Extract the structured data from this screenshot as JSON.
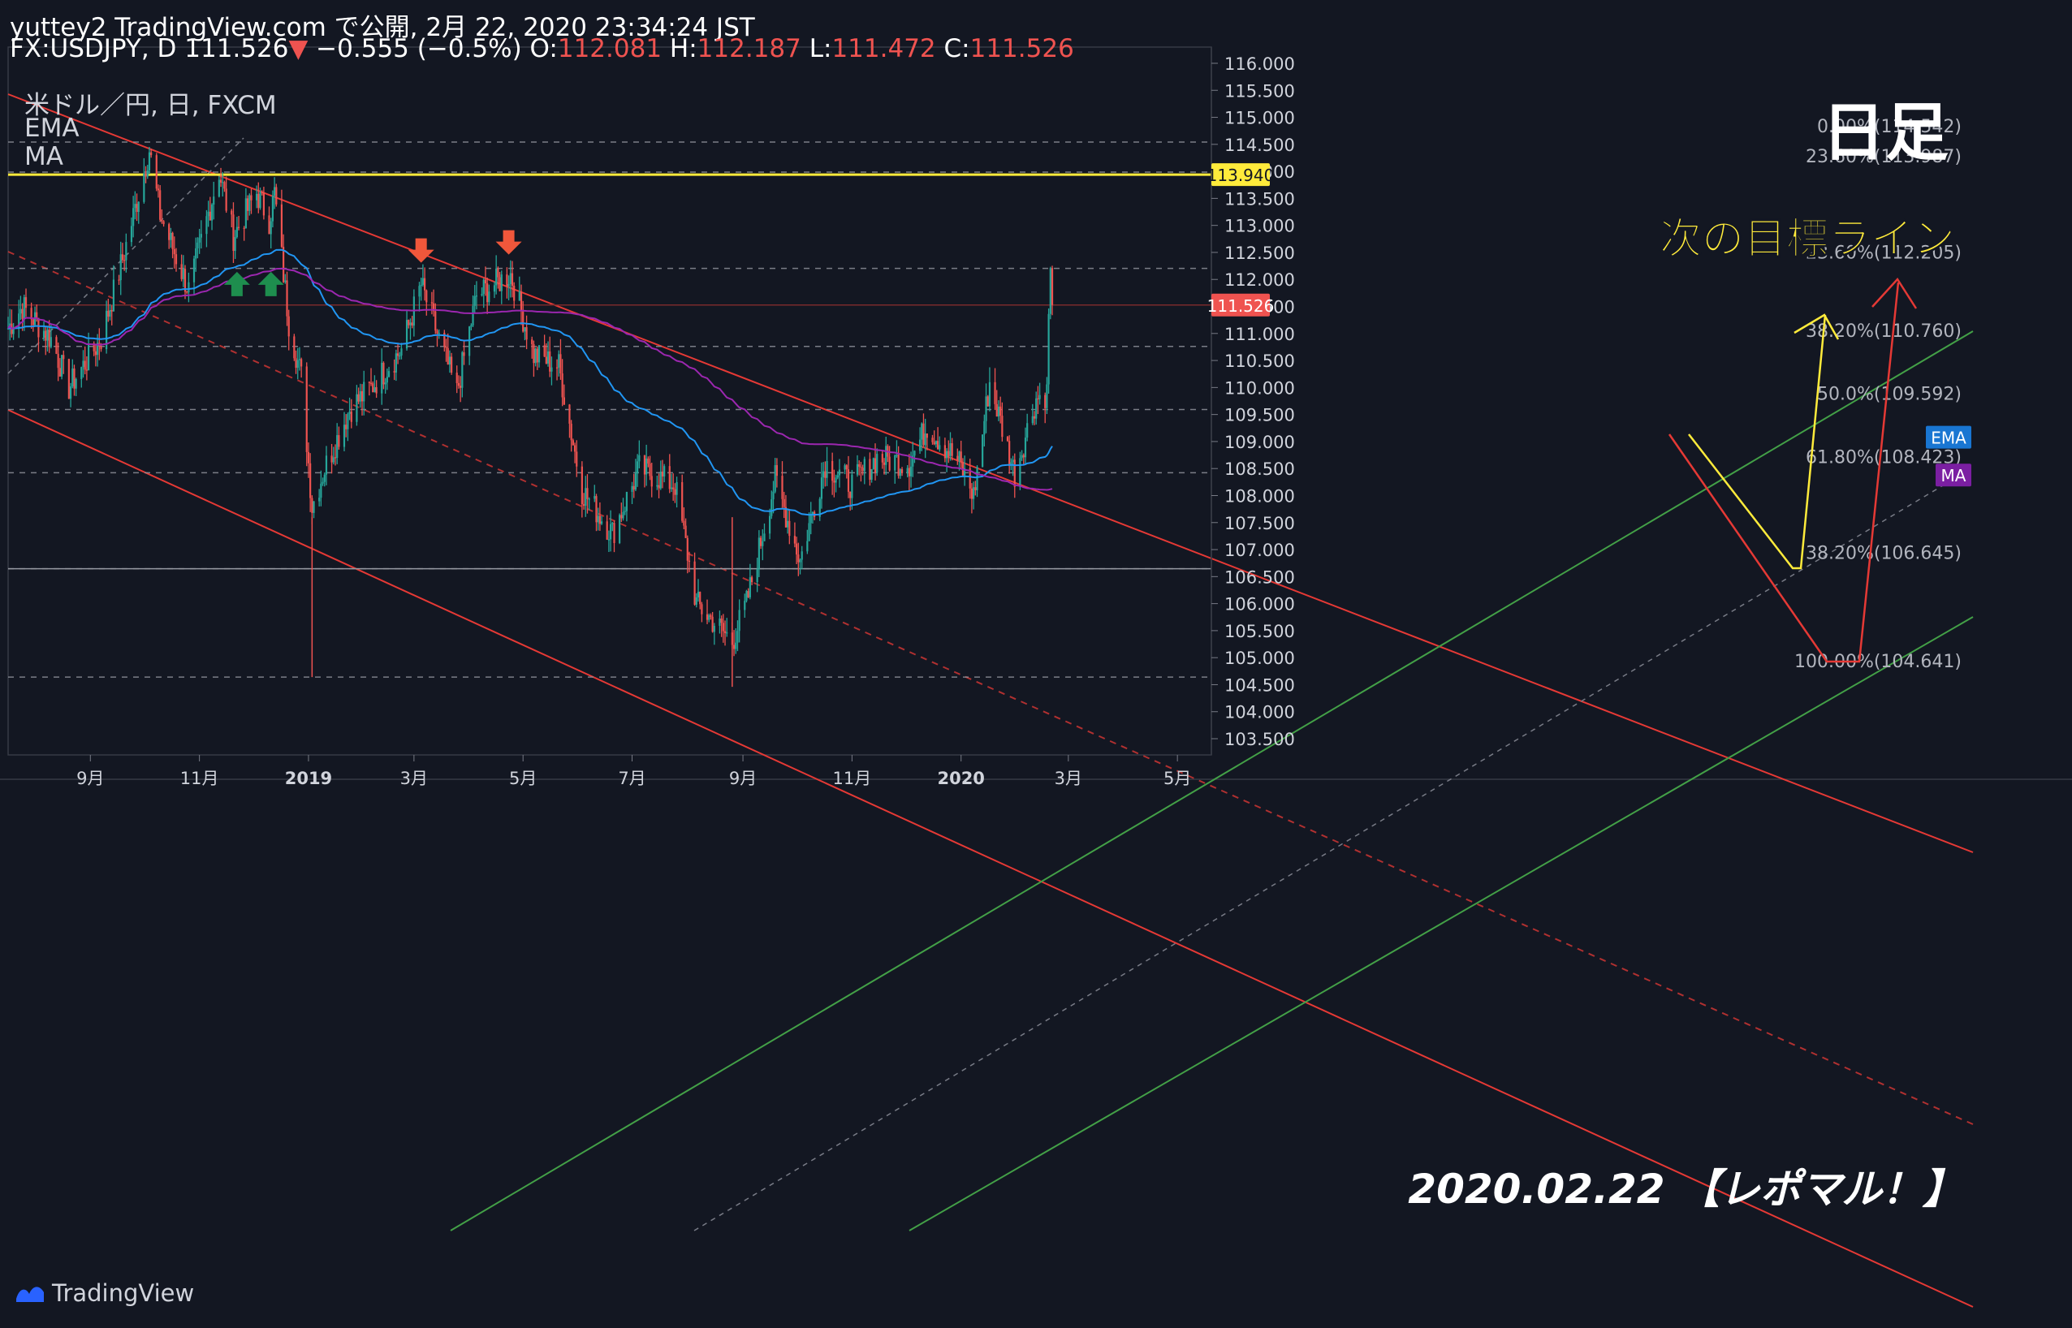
{
  "header": {
    "line1": "yuttey2 TradingView.com で公開, 2月 22, 2020 23:34:24 JST",
    "symbol_prefix": "FX:USDJPY, D 111.526",
    "down_arrow": "▼",
    "change": "−0.555 (−0.5%)",
    "o_label": "O:",
    "o_value": "112.081",
    "h_label": "H:",
    "h_value": "112.187",
    "l_label": "L:",
    "l_value": "111.472",
    "c_label": "C:",
    "c_value": "111.526"
  },
  "legend": {
    "instrument": "米ドル／円, 日, FXCM",
    "ema": "EMA",
    "ma": "MA"
  },
  "annotations": {
    "timeframe": "日足",
    "target": "次の目標ライン",
    "date_note": "2020.02.22 【レポマル！】"
  },
  "footer": {
    "brand": "TradingView"
  },
  "colors": {
    "background": "#131722",
    "up": "#26a69a",
    "down": "#ef5350",
    "ema": "#2196f3",
    "ma": "#9c27b0",
    "channel": "#e53935",
    "green_channel": "#43a047",
    "target": "#ffeb3b"
  },
  "chart_data": {
    "type": "candlestick",
    "symbol": "FX:USDJPY",
    "timeframe": "D",
    "x_range": [
      "2018-07-17",
      "2020-05-20"
    ],
    "y_range": [
      103.2,
      116.3
    ],
    "y_ticks": [
      "116.000",
      "115.500",
      "115.000",
      "114.500",
      "114.000",
      "113.500",
      "113.000",
      "112.500",
      "112.000",
      "111.500",
      "111.000",
      "110.500",
      "110.000",
      "109.500",
      "109.000",
      "108.500",
      "108.000",
      "107.500",
      "107.000",
      "106.500",
      "106.000",
      "105.500",
      "105.000",
      "104.500",
      "104.000",
      "103.500"
    ],
    "x_ticks": [
      {
        "label": "9月",
        "date": "2018-09-01"
      },
      {
        "label": "11月",
        "date": "2018-11-01"
      },
      {
        "label": "2019",
        "date": "2019-01-01"
      },
      {
        "label": "3月",
        "date": "2019-03-01"
      },
      {
        "label": "5月",
        "date": "2019-05-01"
      },
      {
        "label": "7月",
        "date": "2019-07-01"
      },
      {
        "label": "9月",
        "date": "2019-09-01"
      },
      {
        "label": "11月",
        "date": "2019-11-01"
      },
      {
        "label": "2020",
        "date": "2020-01-01"
      },
      {
        "label": "3月",
        "date": "2020-03-01"
      },
      {
        "label": "5月",
        "date": "2020-05-01"
      }
    ],
    "price_badges": [
      {
        "label": "113.940",
        "value": 113.94,
        "type": "target"
      },
      {
        "label": "111.526",
        "value": 111.526,
        "type": "last"
      },
      {
        "label": "EMA",
        "value": 109.08,
        "type": "ema"
      },
      {
        "label": "MA",
        "value": 108.38,
        "type": "ma"
      }
    ],
    "fib_levels": [
      {
        "label": "0.00%(114.542)",
        "value": 114.542
      },
      {
        "label": "23.60%(113.987)",
        "value": 113.987
      },
      {
        "label": "23.60%(112.205)",
        "value": 112.205
      },
      {
        "label": "38.20%(110.760)",
        "value": 110.76
      },
      {
        "label": "50.0%(109.592)",
        "value": 109.592
      },
      {
        "label": "61.80%(108.423)",
        "value": 108.423
      },
      {
        "label": "38.20%(106.645)",
        "value": 106.645
      },
      {
        "label": "100.00%(104.641)",
        "value": 104.641
      }
    ],
    "horizontal_lines": [
      {
        "value": 113.94,
        "style": "target"
      },
      {
        "value": 111.526,
        "style": "last"
      },
      {
        "value": 106.645,
        "style": "plain"
      }
    ],
    "anchors": [
      {
        "date": "2018-07-17",
        "close": 111.1
      },
      {
        "date": "2018-07-25",
        "close": 111.5
      },
      {
        "date": "2018-08-10",
        "close": 110.9
      },
      {
        "date": "2018-08-20",
        "close": 110.0
      },
      {
        "date": "2018-09-07",
        "close": 110.9
      },
      {
        "date": "2018-09-20",
        "close": 112.5
      },
      {
        "date": "2018-10-04",
        "close": 114.4
      },
      {
        "date": "2018-10-10",
        "close": 113.2
      },
      {
        "date": "2018-10-26",
        "close": 111.8
      },
      {
        "date": "2018-11-12",
        "close": 114.0
      },
      {
        "date": "2018-11-20",
        "close": 112.8
      },
      {
        "date": "2018-12-03",
        "close": 113.6
      },
      {
        "date": "2018-12-10",
        "close": 113.1
      },
      {
        "date": "2018-12-13",
        "close": 113.6
      },
      {
        "date": "2018-12-21",
        "close": 111.2
      },
      {
        "date": "2018-12-28",
        "close": 110.2
      },
      {
        "date": "2019-01-03",
        "close": 107.8
      },
      {
        "date": "2019-01-10",
        "close": 108.5
      },
      {
        "date": "2019-01-24",
        "close": 109.6
      },
      {
        "date": "2019-02-05",
        "close": 110.0
      },
      {
        "date": "2019-02-22",
        "close": 110.7
      },
      {
        "date": "2019-03-05",
        "close": 111.9
      },
      {
        "date": "2019-03-25",
        "close": 109.9
      },
      {
        "date": "2019-04-05",
        "close": 111.7
      },
      {
        "date": "2019-04-24",
        "close": 112.1
      },
      {
        "date": "2019-05-07",
        "close": 110.6
      },
      {
        "date": "2019-05-21",
        "close": 110.4
      },
      {
        "date": "2019-06-03",
        "close": 108.1
      },
      {
        "date": "2019-06-20",
        "close": 107.3
      },
      {
        "date": "2019-07-05",
        "close": 108.5
      },
      {
        "date": "2019-07-25",
        "close": 108.2
      },
      {
        "date": "2019-08-06",
        "close": 106.0
      },
      {
        "date": "2019-08-26",
        "close": 105.3
      },
      {
        "date": "2019-09-03",
        "close": 106.0
      },
      {
        "date": "2019-09-19",
        "close": 108.3
      },
      {
        "date": "2019-10-03",
        "close": 106.8
      },
      {
        "date": "2019-10-17",
        "close": 108.6
      },
      {
        "date": "2019-11-01",
        "close": 108.2
      },
      {
        "date": "2019-11-15",
        "close": 108.7
      },
      {
        "date": "2019-12-03",
        "close": 108.6
      },
      {
        "date": "2019-12-13",
        "close": 109.3
      },
      {
        "date": "2019-12-31",
        "close": 108.6
      },
      {
        "date": "2020-01-08",
        "close": 108.0
      },
      {
        "date": "2020-01-17",
        "close": 110.1
      },
      {
        "date": "2020-01-31",
        "close": 108.4
      },
      {
        "date": "2020-02-12",
        "close": 109.8
      },
      {
        "date": "2020-02-18",
        "close": 109.9
      },
      {
        "date": "2020-02-19",
        "close": 111.4
      },
      {
        "date": "2020-02-20",
        "close": 112.1
      },
      {
        "date": "2020-02-21",
        "close": 111.526
      }
    ]
  }
}
